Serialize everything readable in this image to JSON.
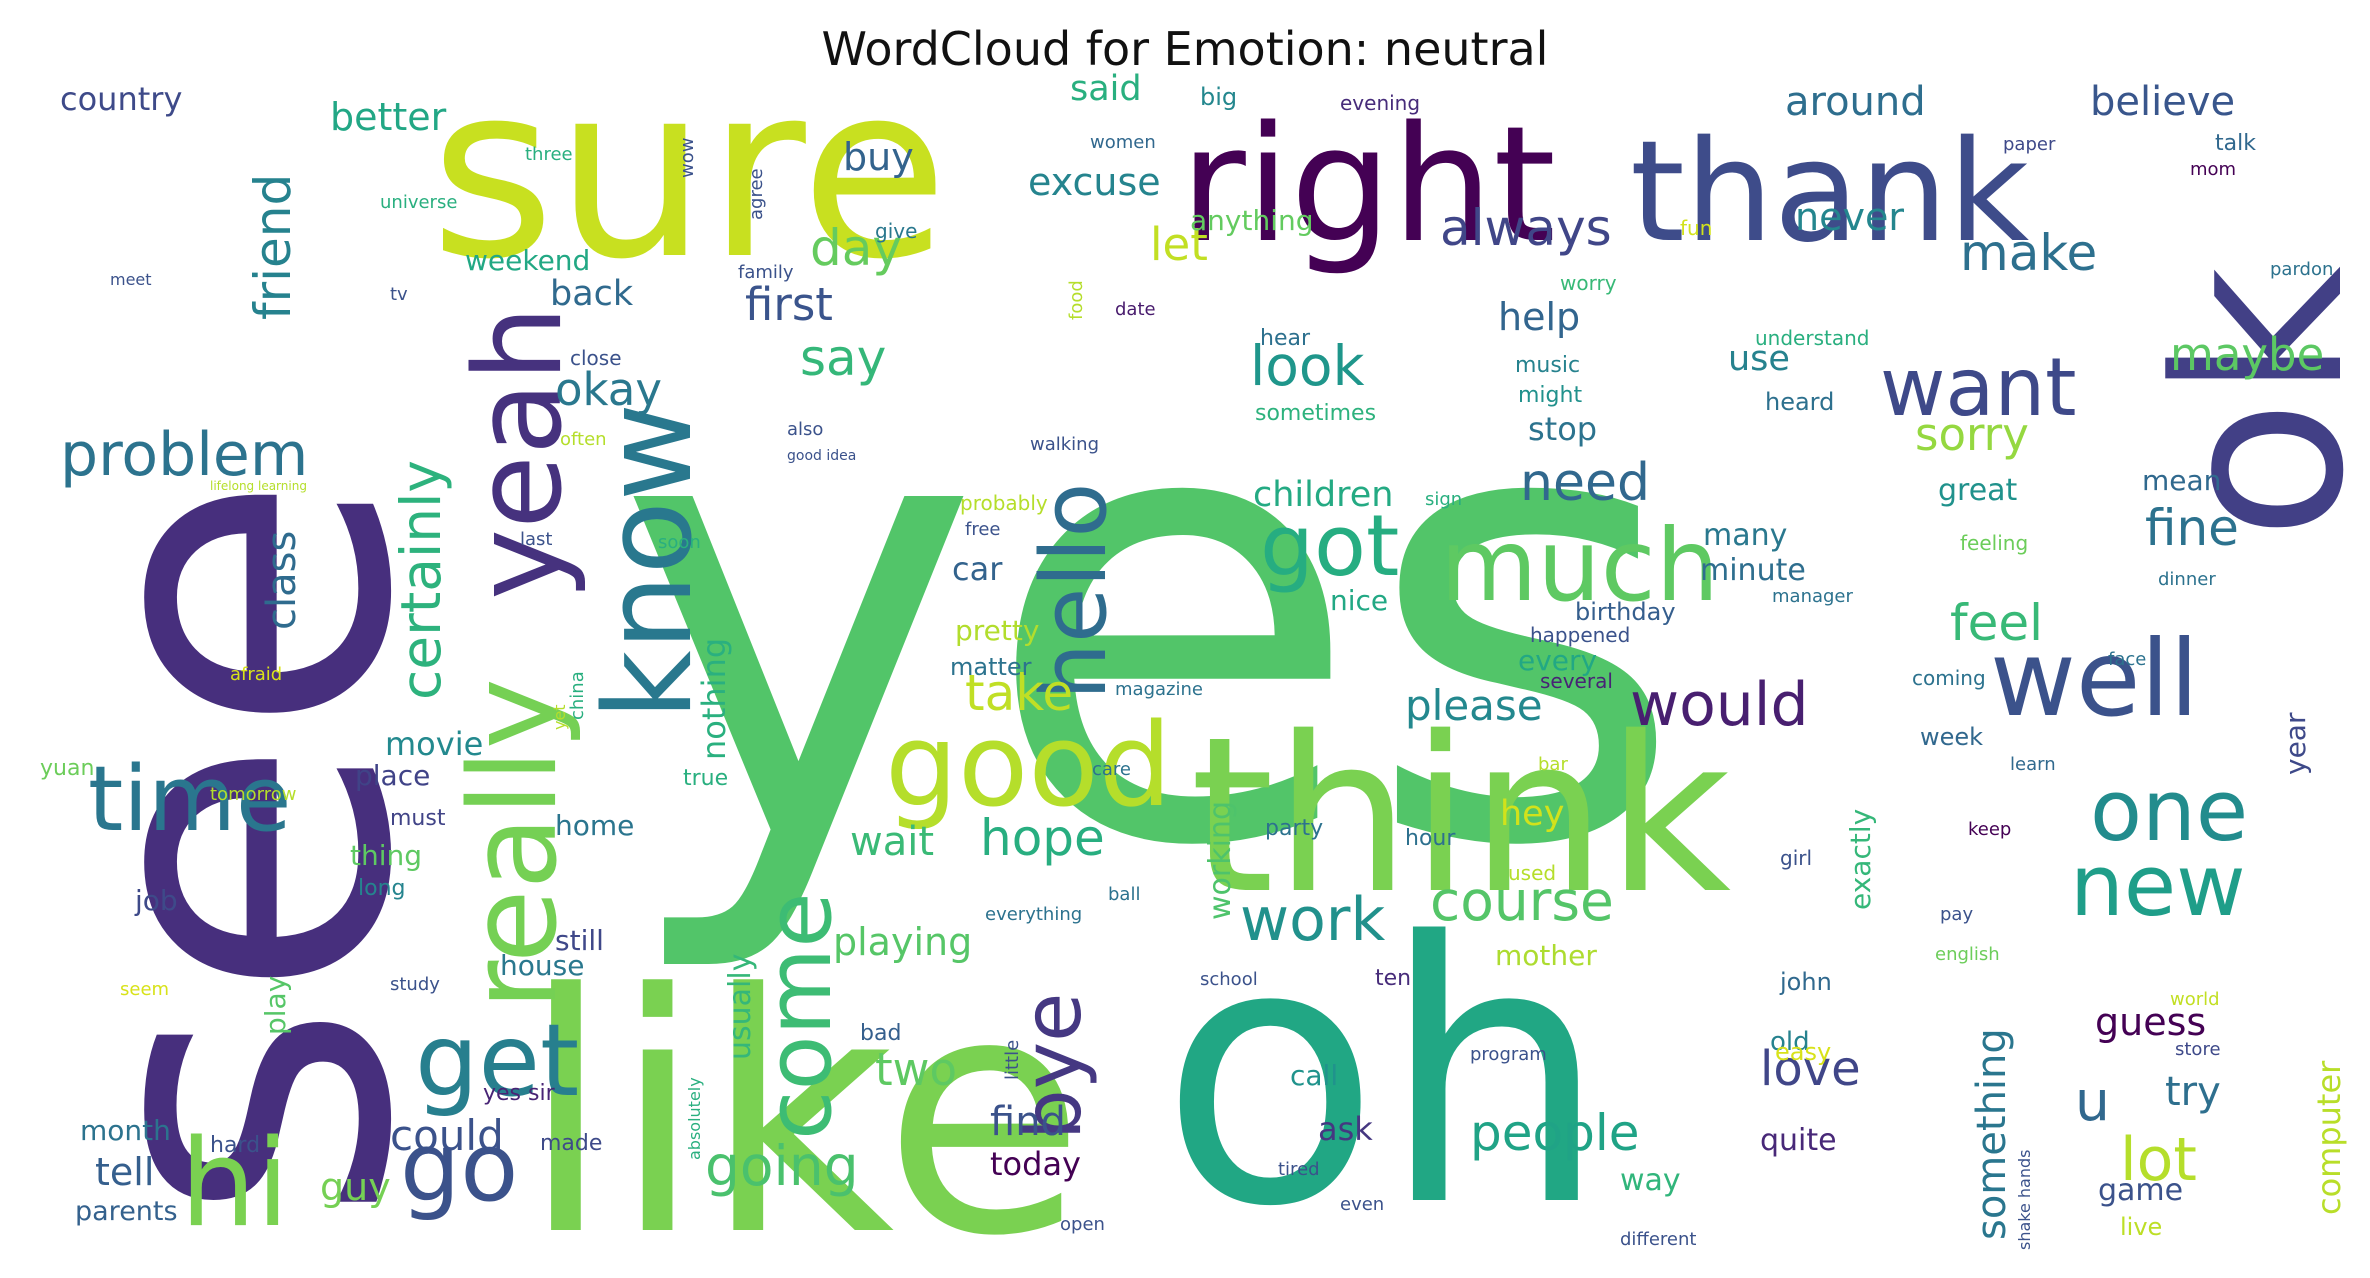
{
  "chart_data": {
    "type": "wordcloud",
    "title": "WordCloud for Emotion: neutral",
    "words": [
      {
        "text": "yes",
        "weight": 100,
        "color": "#52c569"
      },
      {
        "text": "see",
        "weight": 90,
        "color": "#472f7d"
      },
      {
        "text": "like",
        "weight": 82,
        "color": "#7ad151"
      },
      {
        "text": "oh",
        "weight": 80,
        "color": "#21a784"
      },
      {
        "text": "sure",
        "weight": 62,
        "color": "#c8e020"
      },
      {
        "text": "ok",
        "weight": 58,
        "color": "#424086"
      },
      {
        "text": "think",
        "weight": 57,
        "color": "#7ad151"
      },
      {
        "text": "right",
        "weight": 42,
        "color": "#440154"
      },
      {
        "text": "thank",
        "weight": 40,
        "color": "#3e4c8a"
      },
      {
        "text": "really",
        "weight": 36,
        "color": "#75d054"
      },
      {
        "text": "know",
        "weight": 34,
        "color": "#29788e"
      },
      {
        "text": "yeah",
        "weight": 33,
        "color": "#46327e"
      },
      {
        "text": "good",
        "weight": 31,
        "color": "#b5de2b"
      },
      {
        "text": "well",
        "weight": 30,
        "color": "#3b528b"
      },
      {
        "text": "hi",
        "weight": 28,
        "color": "#7ad151"
      },
      {
        "text": "much",
        "weight": 26,
        "color": "#5ec962"
      },
      {
        "text": "get",
        "weight": 24,
        "color": "#277f8e"
      },
      {
        "text": "come",
        "weight": 24,
        "color": "#3dbc74"
      },
      {
        "text": "time",
        "weight": 23,
        "color": "#2a768e"
      },
      {
        "text": "one",
        "weight": 22,
        "color": "#228c8d"
      },
      {
        "text": "new",
        "weight": 21,
        "color": "#1f9e89"
      },
      {
        "text": "go",
        "weight": 20,
        "color": "#3b528b"
      },
      {
        "text": "hello",
        "weight": 20,
        "color": "#2f6c8e"
      },
      {
        "text": "got",
        "weight": 19,
        "color": "#26ad81"
      },
      {
        "text": "want",
        "weight": 19,
        "color": "#3e4989"
      },
      {
        "text": "bye",
        "weight": 18,
        "color": "#453882"
      },
      {
        "text": "problem",
        "weight": 14,
        "color": "#2c738e"
      },
      {
        "text": "certainly",
        "weight": 13,
        "color": "#2db27d"
      },
      {
        "text": "going",
        "weight": 13,
        "color": "#4ac16d"
      },
      {
        "text": "course",
        "weight": 13,
        "color": "#54c568"
      },
      {
        "text": "work",
        "weight": 13,
        "color": "#21918c"
      },
      {
        "text": "look",
        "weight": 12,
        "color": "#1f968b"
      },
      {
        "text": "always",
        "weight": 12,
        "color": "#404688"
      },
      {
        "text": "day",
        "weight": 12,
        "color": "#65cb5e"
      },
      {
        "text": "hope",
        "weight": 12,
        "color": "#28ae80"
      },
      {
        "text": "would",
        "weight": 12,
        "color": "#481f70"
      },
      {
        "text": "people",
        "weight": 12,
        "color": "#20a386"
      },
      {
        "text": "feel",
        "weight": 11,
        "color": "#38b977"
      },
      {
        "text": "lot",
        "weight": 11,
        "color": "#b5de2b"
      },
      {
        "text": "need",
        "weight": 11,
        "color": "#31688e"
      },
      {
        "text": "fine",
        "weight": 11,
        "color": "#2c728e"
      },
      {
        "text": "make",
        "weight": 11,
        "color": "#2d708e"
      },
      {
        "text": "love",
        "weight": 11,
        "color": "#404688"
      },
      {
        "text": "say",
        "weight": 11,
        "color": "#35b779"
      },
      {
        "text": "take",
        "weight": 11,
        "color": "#c0df25"
      },
      {
        "text": "first",
        "weight": 11,
        "color": "#3a548c"
      },
      {
        "text": "friend",
        "weight": 11,
        "color": "#26828e"
      },
      {
        "text": "sorry",
        "weight": 10,
        "color": "#95d840"
      },
      {
        "text": "maybe",
        "weight": 10,
        "color": "#5cc863"
      },
      {
        "text": "okay",
        "weight": 10,
        "color": "#2a788e"
      },
      {
        "text": "two",
        "weight": 10,
        "color": "#5ec962"
      },
      {
        "text": "could",
        "weight": 10,
        "color": "#3b528b"
      },
      {
        "text": "find",
        "weight": 10,
        "color": "#3b528b"
      },
      {
        "text": "let",
        "weight": 10,
        "color": "#c2df23"
      },
      {
        "text": "please",
        "weight": 10,
        "color": "#23888e"
      },
      {
        "text": "u",
        "weight": 10,
        "color": "#31688e"
      },
      {
        "text": "something",
        "weight": 9,
        "color": "#2a768e"
      },
      {
        "text": "class",
        "weight": 9,
        "color": "#2f6b8e"
      },
      {
        "text": "tell",
        "weight": 9,
        "color": "#355f8d"
      },
      {
        "text": "wait",
        "weight": 9,
        "color": "#3aba76"
      },
      {
        "text": "never",
        "weight": 9,
        "color": "#24868e"
      },
      {
        "text": "around",
        "weight": 9,
        "color": "#2e6e8e"
      },
      {
        "text": "believe",
        "weight": 9,
        "color": "#39568c"
      },
      {
        "text": "playing",
        "weight": 9,
        "color": "#56c667"
      },
      {
        "text": "try",
        "weight": 9,
        "color": "#2e6f8e"
      },
      {
        "text": "guess",
        "weight": 9,
        "color": "#440154"
      },
      {
        "text": "computer",
        "weight": 8,
        "color": "#b8de29"
      },
      {
        "text": "nothing",
        "weight": 8,
        "color": "#2ab07f"
      },
      {
        "text": "excuse",
        "weight": 8,
        "color": "#25848e"
      },
      {
        "text": "help",
        "weight": 8,
        "color": "#32658e"
      },
      {
        "text": "better",
        "weight": 8,
        "color": "#22a785"
      },
      {
        "text": "said",
        "weight": 8,
        "color": "#29af7f"
      },
      {
        "text": "children",
        "weight": 8,
        "color": "#24aa83"
      },
      {
        "text": "buy",
        "weight": 8,
        "color": "#33638d"
      },
      {
        "text": "back",
        "weight": 7,
        "color": "#306a8e"
      },
      {
        "text": "movie",
        "weight": 7,
        "color": "#23898e"
      },
      {
        "text": "hey",
        "weight": 7,
        "color": "#d2e21b"
      },
      {
        "text": "usually",
        "weight": 7,
        "color": "#35b779"
      },
      {
        "text": "use",
        "weight": 7,
        "color": "#26828e"
      },
      {
        "text": "guy",
        "weight": 7,
        "color": "#75d054"
      },
      {
        "text": "car",
        "weight": 7,
        "color": "#33638d"
      },
      {
        "text": "stop",
        "weight": 7,
        "color": "#2c738e"
      },
      {
        "text": "country",
        "weight": 7,
        "color": "#3e4a89"
      },
      {
        "text": "mean",
        "weight": 6,
        "color": "#30698e"
      },
      {
        "text": "quite",
        "weight": 6,
        "color": "#482878"
      },
      {
        "text": "great",
        "weight": 6,
        "color": "#20928c"
      },
      {
        "text": "today",
        "weight": 6,
        "color": "#440154"
      },
      {
        "text": "ask",
        "weight": 6,
        "color": "#453781"
      },
      {
        "text": "way",
        "weight": 6,
        "color": "#31b57b"
      },
      {
        "text": "many",
        "weight": 6,
        "color": "#2a788e"
      },
      {
        "text": "minute",
        "weight": 6,
        "color": "#2e6e8e"
      },
      {
        "text": "exactly",
        "weight": 6,
        "color": "#35b779"
      },
      {
        "text": "every",
        "weight": 6,
        "color": "#22a884"
      },
      {
        "text": "pretty",
        "weight": 6,
        "color": "#b2dd2d"
      },
      {
        "text": "weekend",
        "weight": 6,
        "color": "#22a884"
      },
      {
        "text": "home",
        "weight": 6,
        "color": "#2b758e"
      },
      {
        "text": "place",
        "weight": 6,
        "color": "#404387"
      },
      {
        "text": "thing",
        "weight": 6,
        "color": "#5ec962"
      },
      {
        "text": "house",
        "weight": 6,
        "color": "#2a788e"
      },
      {
        "text": "still",
        "weight": 6,
        "color": "#3f4889"
      },
      {
        "text": "job",
        "weight": 6,
        "color": "#3e4a89"
      },
      {
        "text": "play",
        "weight": 6,
        "color": "#56c667"
      },
      {
        "text": "month",
        "weight": 6,
        "color": "#2c738e"
      },
      {
        "text": "parents",
        "weight": 6,
        "color": "#34618d"
      },
      {
        "text": "game",
        "weight": 6,
        "color": "#3b528b"
      },
      {
        "text": "call",
        "weight": 6,
        "color": "#20938c"
      },
      {
        "text": "working",
        "weight": 6,
        "color": "#4ec36b"
      },
      {
        "text": "mother",
        "weight": 6,
        "color": "#addc30"
      },
      {
        "text": "year",
        "weight": 5,
        "color": "#3e4989"
      },
      {
        "text": "nice",
        "weight": 5,
        "color": "#22a884"
      },
      {
        "text": "matter",
        "weight": 5,
        "color": "#2c738e"
      },
      {
        "text": "anything",
        "weight": 5,
        "color": "#63cb5f"
      },
      {
        "text": "old",
        "weight": 5,
        "color": "#26828e"
      },
      {
        "text": "week",
        "weight": 5,
        "color": "#31688e"
      },
      {
        "text": "big",
        "weight": 5,
        "color": "#24878e"
      },
      {
        "text": "john",
        "weight": 5,
        "color": "#30698e"
      },
      {
        "text": "birthday",
        "weight": 5,
        "color": "#355e8d"
      },
      {
        "text": "heard",
        "weight": 5,
        "color": "#2d708e"
      },
      {
        "text": "live",
        "weight": 5,
        "color": "#bddf26"
      },
      {
        "text": "easy",
        "weight": 5,
        "color": "#d8e219"
      },
      {
        "text": "made",
        "weight": 4,
        "color": "#3e4a89"
      },
      {
        "text": "yes sir",
        "weight": 4,
        "color": "#482475"
      },
      {
        "text": "must",
        "weight": 4,
        "color": "#414487"
      },
      {
        "text": "long",
        "weight": 4,
        "color": "#25848e"
      },
      {
        "text": "true",
        "weight": 4,
        "color": "#29af7f"
      },
      {
        "text": "bad",
        "weight": 4,
        "color": "#355f8d"
      },
      {
        "text": "hard",
        "weight": 4,
        "color": "#3b528b"
      },
      {
        "text": "party",
        "weight": 4,
        "color": "#2c728e"
      },
      {
        "text": "ten",
        "weight": 4,
        "color": "#472c7a"
      },
      {
        "text": "hour",
        "weight": 4,
        "color": "#2d708e"
      },
      {
        "text": "music",
        "weight": 4,
        "color": "#26828e"
      },
      {
        "text": "might",
        "weight": 4,
        "color": "#21918c"
      },
      {
        "text": "hear",
        "weight": 4,
        "color": "#2d708e"
      },
      {
        "text": "sometimes",
        "weight": 4,
        "color": "#2db27d"
      },
      {
        "text": "happened",
        "weight": 4,
        "color": "#3b528b"
      },
      {
        "text": "several",
        "weight": 4,
        "color": "#482475"
      },
      {
        "text": "evening",
        "weight": 4,
        "color": "#472c7a"
      },
      {
        "text": "women",
        "weight": 4,
        "color": "#31688e"
      },
      {
        "text": "give",
        "weight": 4,
        "color": "#2a788e"
      },
      {
        "text": "fun",
        "weight": 4,
        "color": "#d2e21b"
      },
      {
        "text": "worry",
        "weight": 4,
        "color": "#38b977"
      },
      {
        "text": "understand",
        "weight": 4,
        "color": "#29af7f"
      },
      {
        "text": "feeling",
        "weight": 4,
        "color": "#6ccd5a"
      },
      {
        "text": "coming",
        "weight": 4,
        "color": "#2c728e"
      },
      {
        "text": "learn",
        "weight": 4,
        "color": "#30698e"
      },
      {
        "text": "keep",
        "weight": 4,
        "color": "#440154"
      },
      {
        "text": "girl",
        "weight": 4,
        "color": "#3b528b"
      },
      {
        "text": "pay",
        "weight": 4,
        "color": "#3b528b"
      },
      {
        "text": "english",
        "weight": 4,
        "color": "#6ccd5a"
      },
      {
        "text": "world",
        "weight": 4,
        "color": "#c2df23"
      },
      {
        "text": "store",
        "weight": 4,
        "color": "#3e4989"
      },
      {
        "text": "talk",
        "weight": 4,
        "color": "#31688e"
      },
      {
        "text": "mom",
        "weight": 4,
        "color": "#440154"
      },
      {
        "text": "paper",
        "weight": 3,
        "color": "#3e4989"
      },
      {
        "text": "pardon",
        "weight": 3,
        "color": "#2c728e"
      },
      {
        "text": "dinner",
        "weight": 3,
        "color": "#2c728e"
      },
      {
        "text": "manager",
        "weight": 3,
        "color": "#2c728e"
      },
      {
        "text": "face",
        "weight": 3,
        "color": "#2c728e"
      },
      {
        "text": "date",
        "weight": 3,
        "color": "#481b6d"
      },
      {
        "text": "food",
        "weight": 3,
        "color": "#b5de2b"
      },
      {
        "text": "magazine",
        "weight": 3,
        "color": "#2c728e"
      },
      {
        "text": "care",
        "weight": 3,
        "color": "#2c728e"
      },
      {
        "text": "ball",
        "weight": 3,
        "color": "#2c728e"
      },
      {
        "text": "used",
        "weight": 3,
        "color": "#b5de2b"
      },
      {
        "text": "everything",
        "weight": 3,
        "color": "#2c728e"
      },
      {
        "text": "school",
        "weight": 3,
        "color": "#3b528b"
      },
      {
        "text": "little",
        "weight": 3,
        "color": "#3b528b"
      },
      {
        "text": "program",
        "weight": 3,
        "color": "#3b528b"
      },
      {
        "text": "tired",
        "weight": 3,
        "color": "#3b528b"
      },
      {
        "text": "even",
        "weight": 3,
        "color": "#3b528b"
      },
      {
        "text": "different",
        "weight": 3,
        "color": "#3b528b"
      },
      {
        "text": "open",
        "weight": 3,
        "color": "#3b528b"
      },
      {
        "text": "shake hands",
        "weight": 3,
        "color": "#3b528b"
      },
      {
        "text": "absolutely",
        "weight": 3,
        "color": "#29af7f"
      },
      {
        "text": "free",
        "weight": 3,
        "color": "#3b528b"
      },
      {
        "text": "probably",
        "weight": 3,
        "color": "#b5de2b"
      },
      {
        "text": "walking",
        "weight": 3,
        "color": "#3b528b"
      },
      {
        "text": "sign",
        "weight": 3,
        "color": "#29af7f"
      },
      {
        "text": "also",
        "weight": 3,
        "color": "#3b528b"
      },
      {
        "text": "good idea",
        "weight": 2,
        "color": "#3b528b"
      },
      {
        "text": "often",
        "weight": 3,
        "color": "#b5de2b"
      },
      {
        "text": "soon",
        "weight": 3,
        "color": "#29af7f"
      },
      {
        "text": "last",
        "weight": 3,
        "color": "#3b528b"
      },
      {
        "text": "close",
        "weight": 3,
        "color": "#3b528b"
      },
      {
        "text": "family",
        "weight": 3,
        "color": "#3b528b"
      },
      {
        "text": "agree",
        "weight": 3,
        "color": "#3b528b"
      },
      {
        "text": "wow",
        "weight": 3,
        "color": "#3b528b"
      },
      {
        "text": "three",
        "weight": 3,
        "color": "#29af7f"
      },
      {
        "text": "universe",
        "weight": 3,
        "color": "#29af7f"
      },
      {
        "text": "meet",
        "weight": 3,
        "color": "#3b528b"
      },
      {
        "text": "tv",
        "weight": 3,
        "color": "#3b528b"
      },
      {
        "text": "lifelong learning",
        "weight": 2,
        "color": "#b5de2b"
      },
      {
        "text": "afraid",
        "weight": 3,
        "color": "#d8e219"
      },
      {
        "text": "china",
        "weight": 3,
        "color": "#29af7f"
      },
      {
        "text": "yet",
        "weight": 3,
        "color": "#b5de2b"
      },
      {
        "text": "yuan",
        "weight": 3,
        "color": "#6ccd5a"
      },
      {
        "text": "tomorrow",
        "weight": 3,
        "color": "#b5de2b"
      },
      {
        "text": "bar",
        "weight": 3,
        "color": "#b5de2b"
      },
      {
        "text": "seem",
        "weight": 3,
        "color": "#d8e219"
      },
      {
        "text": "study",
        "weight": 3,
        "color": "#3b528b"
      }
    ]
  }
}
